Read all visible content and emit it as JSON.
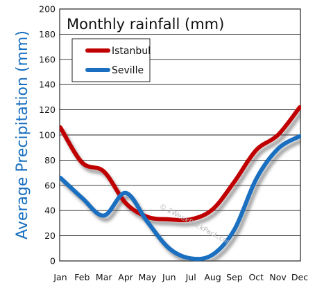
{
  "chart_data": {
    "type": "line",
    "title": "Monthly rainfall (mm)",
    "ylabel": "Average Precipitation (mm)",
    "xlabel": "",
    "categories": [
      "Jan",
      "Feb",
      "Mar",
      "Apr",
      "May",
      "Jun",
      "Jul",
      "Aug",
      "Sep",
      "Oct",
      "Nov",
      "Dec"
    ],
    "ylim": [
      0,
      200
    ],
    "yticks": [
      0,
      20,
      40,
      60,
      80,
      100,
      120,
      140,
      160,
      180,
      200
    ],
    "grid": true,
    "legend_position": "top-left",
    "series": [
      {
        "name": "Istanbul",
        "color": "#c00000",
        "values": [
          106,
          78,
          71,
          46,
          35,
          33,
          33,
          41,
          63,
          88,
          100,
          122
        ]
      },
      {
        "name": "Seville",
        "color": "#1a6fc0",
        "values": [
          66,
          50,
          36,
          54,
          31,
          10,
          2,
          5,
          25,
          65,
          89,
          99
        ]
      }
    ],
    "watermark": "© 2WeekBackPack.com"
  }
}
